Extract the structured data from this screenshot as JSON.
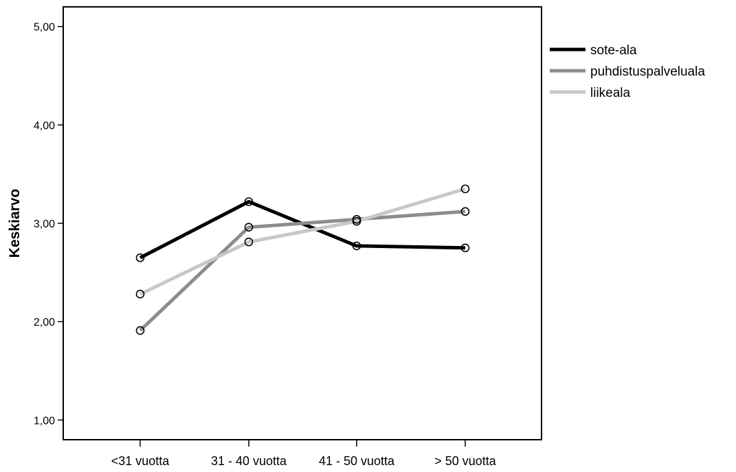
{
  "chart_data": {
    "type": "line",
    "title": "",
    "xlabel": "",
    "ylabel": "Keskiarvo",
    "categories": [
      "<31 vuotta",
      "31 - 40 vuotta",
      "41 - 50 vuotta",
      "> 50 vuotta"
    ],
    "ylim": [
      0.8,
      5.2
    ],
    "yticks": [
      1.0,
      2.0,
      3.0,
      4.0,
      5.0
    ],
    "ytick_labels": [
      "1,00",
      "2,00",
      "3,00",
      "4,00",
      "5,00"
    ],
    "grid": false,
    "legend_position": "top-right-outside",
    "series": [
      {
        "name": "sote-ala",
        "values": [
          2.65,
          3.22,
          2.77,
          2.75
        ],
        "color": "#000000"
      },
      {
        "name": "puhdistuspalveluala",
        "values": [
          1.91,
          2.96,
          3.04,
          3.12
        ],
        "color": "#8c8c8c"
      },
      {
        "name": "liikeala",
        "values": [
          2.28,
          2.81,
          3.02,
          3.35
        ],
        "color": "#c8c8c8"
      }
    ]
  }
}
